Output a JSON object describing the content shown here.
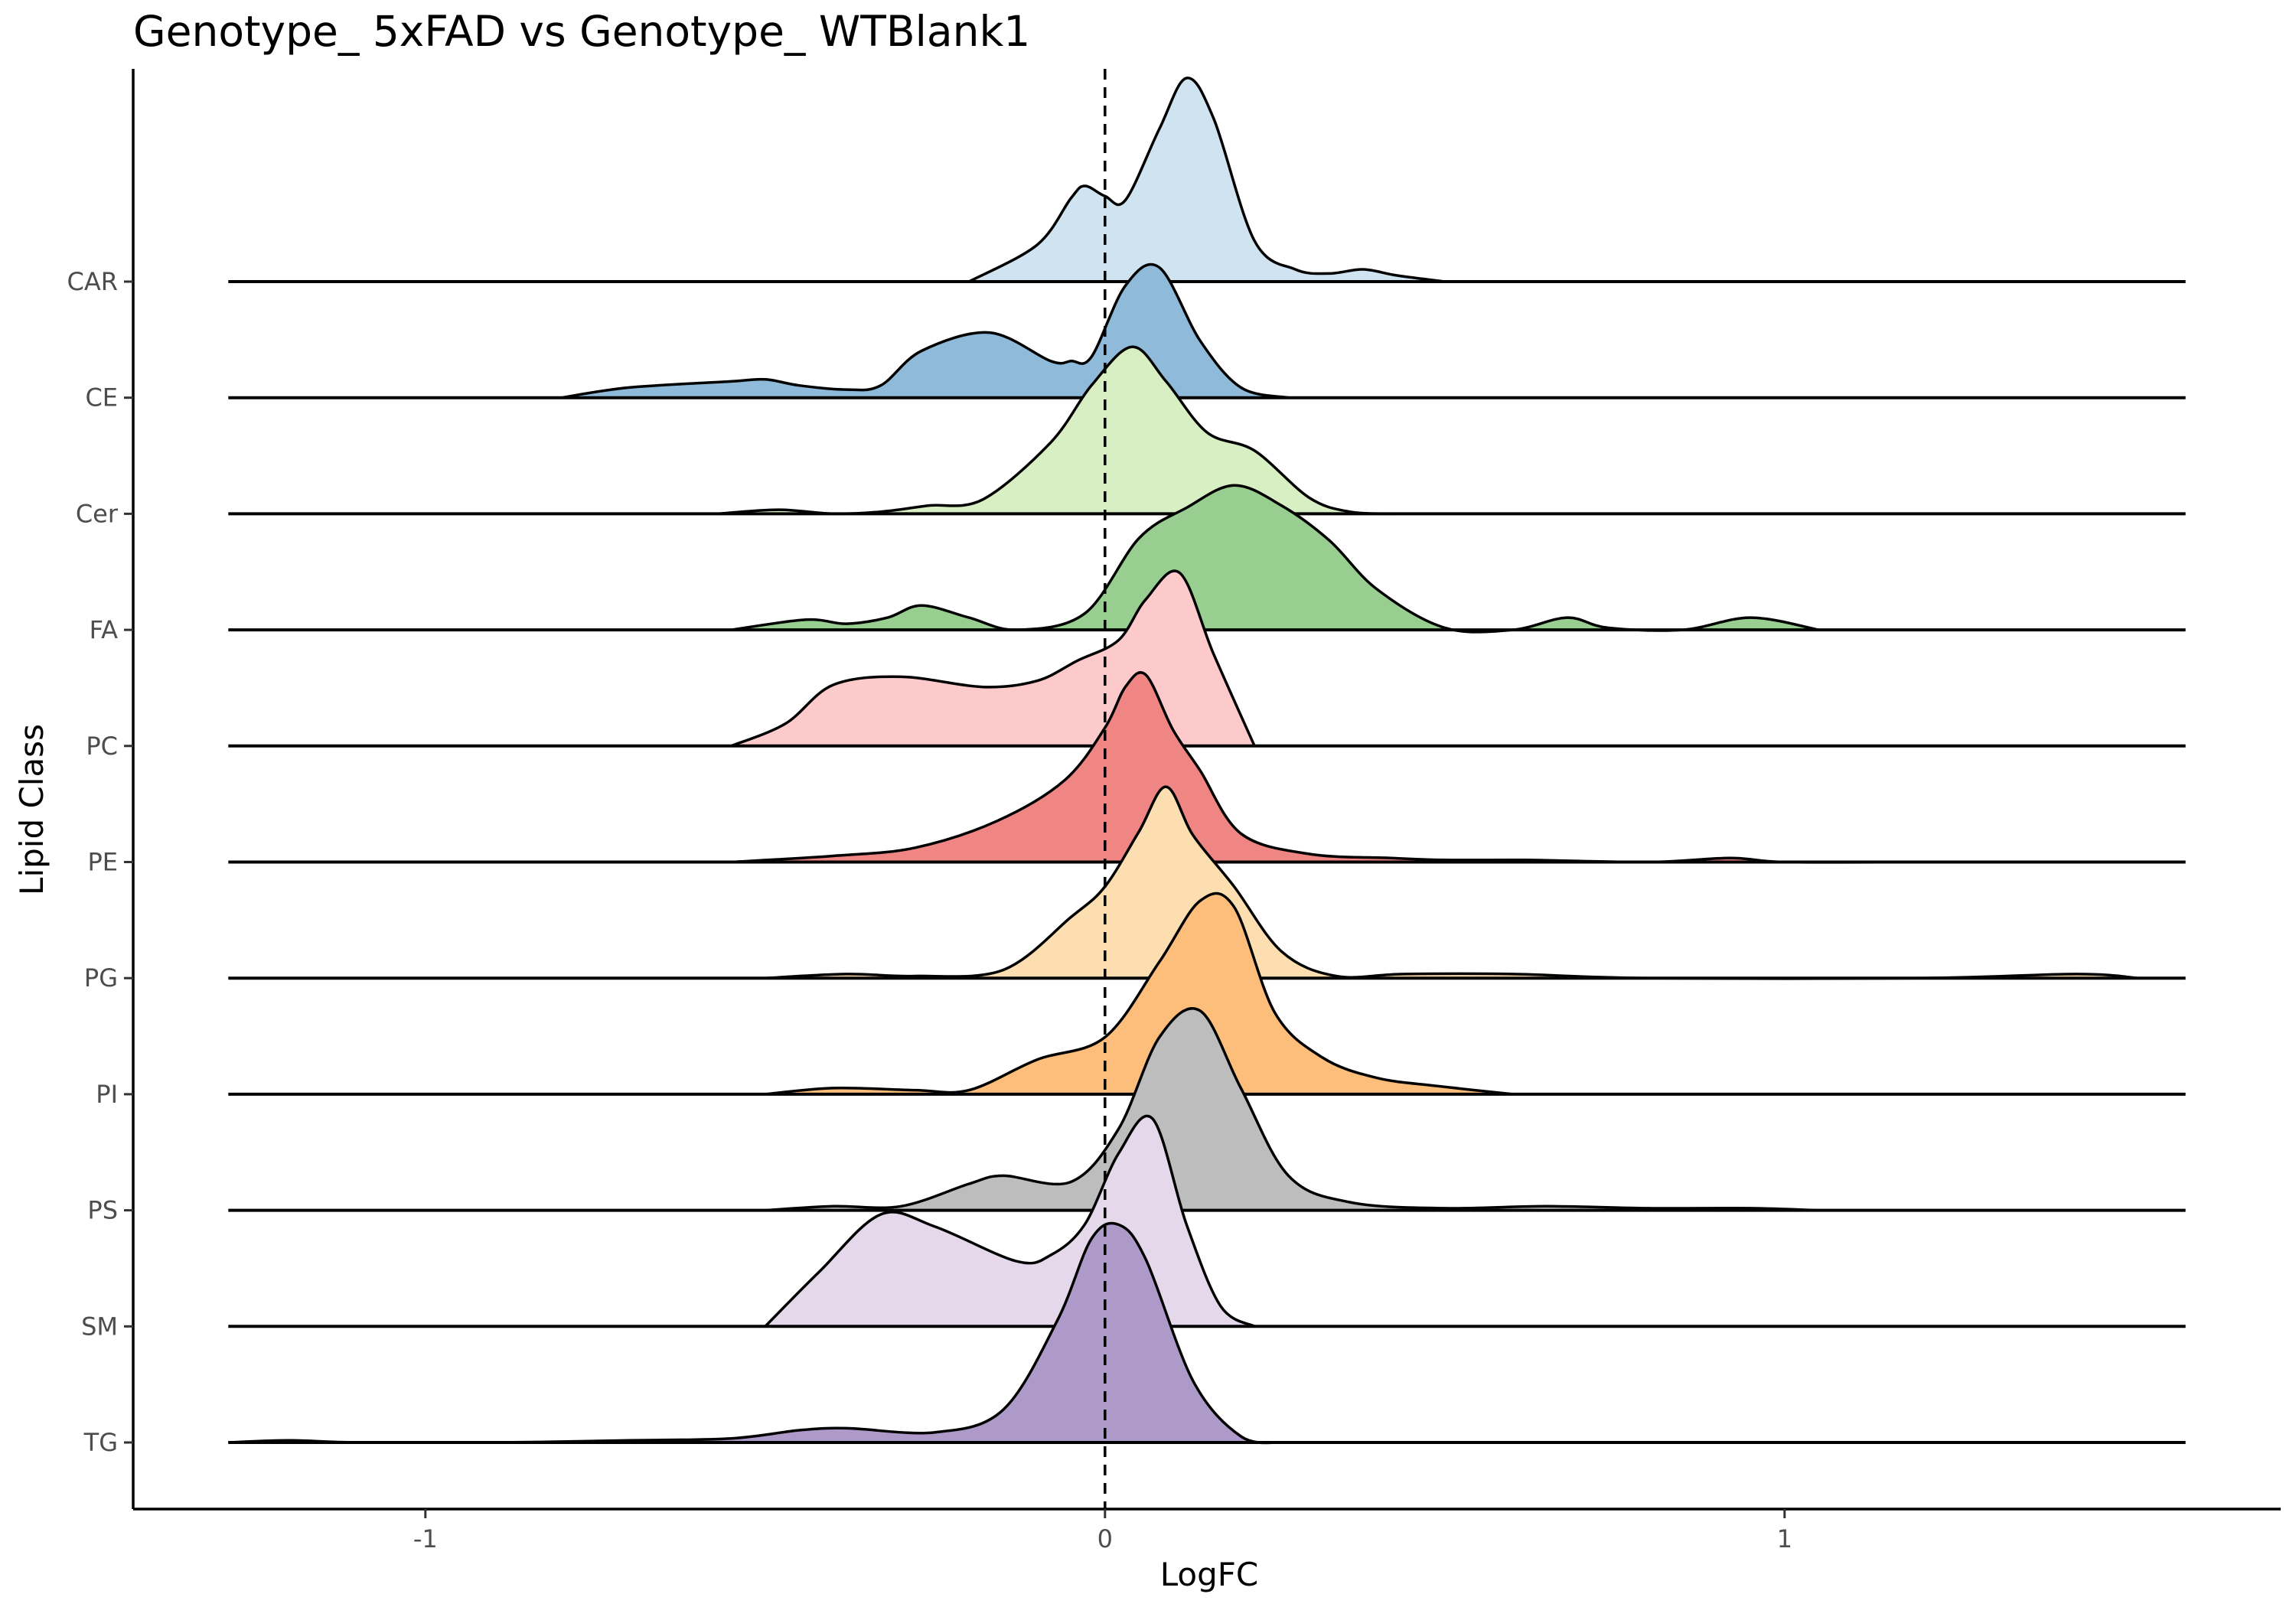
{
  "chart_data": {
    "type": "ridgeline",
    "title": "Genotype_ 5xFAD vs Genotype_ WTBlank1",
    "xlabel": "LogFC",
    "ylabel": "Lipid Class",
    "xlim": [
      -1.43,
      1.73
    ],
    "x_ticks": [
      {
        "value": -1,
        "label": "-1"
      },
      {
        "value": 0,
        "label": "0"
      },
      {
        "value": 1,
        "label": "1"
      }
    ],
    "x_range_drawn": [
      -1.29,
      1.59
    ],
    "reference_line": {
      "x": 0,
      "style": "dashed"
    },
    "grid": false,
    "legend": "none",
    "series": [
      {
        "label": "CAR",
        "color": "#cfe3f0",
        "x": [
          -0.2,
          -0.1,
          -0.05,
          -0.03,
          0.0,
          0.03,
          0.08,
          0.12,
          0.16,
          0.22,
          0.28,
          0.33,
          0.38,
          0.43,
          0.5
        ],
        "density": [
          0.0,
          0.18,
          0.41,
          0.47,
          0.42,
          0.4,
          0.75,
          1.0,
          0.8,
          0.2,
          0.06,
          0.04,
          0.06,
          0.03,
          0.0
        ]
      },
      {
        "label": "CE",
        "color": "#8fbad9",
        "x": [
          -0.8,
          -0.7,
          -0.55,
          -0.5,
          -0.45,
          -0.38,
          -0.33,
          -0.27,
          -0.17,
          -0.08,
          -0.05,
          -0.02,
          0.03,
          0.08,
          0.14,
          0.2,
          0.27
        ],
        "density": [
          0.0,
          0.05,
          0.08,
          0.09,
          0.06,
          0.04,
          0.06,
          0.23,
          0.32,
          0.18,
          0.18,
          0.2,
          0.55,
          0.64,
          0.28,
          0.05,
          0.0
        ]
      },
      {
        "label": "Cer",
        "color": "#d8efc4",
        "x": [
          -0.57,
          -0.48,
          -0.4,
          -0.33,
          -0.26,
          -0.18,
          -0.08,
          -0.02,
          0.04,
          0.09,
          0.15,
          0.22,
          0.3,
          0.36,
          0.43
        ],
        "density": [
          0.0,
          0.02,
          0.0,
          0.01,
          0.04,
          0.07,
          0.35,
          0.63,
          0.82,
          0.65,
          0.4,
          0.31,
          0.08,
          0.01,
          0.0
        ]
      },
      {
        "label": "FA",
        "color": "#98cf91",
        "x": [
          -0.55,
          -0.44,
          -0.38,
          -0.32,
          -0.27,
          -0.2,
          -0.13,
          -0.03,
          0.05,
          0.12,
          0.19,
          0.26,
          0.33,
          0.4,
          0.5,
          0.6,
          0.68,
          0.74,
          0.85,
          0.95,
          1.05
        ],
        "density": [
          0.0,
          0.05,
          0.03,
          0.06,
          0.12,
          0.06,
          0.0,
          0.08,
          0.45,
          0.6,
          0.71,
          0.61,
          0.44,
          0.2,
          0.01,
          0.0,
          0.06,
          0.01,
          0.0,
          0.06,
          0.0
        ]
      },
      {
        "label": "PC",
        "color": "#fccaca",
        "x": [
          -0.55,
          -0.47,
          -0.4,
          -0.3,
          -0.18,
          -0.1,
          -0.04,
          0.02,
          0.06,
          0.11,
          0.16,
          0.22
        ],
        "density": [
          0.0,
          0.11,
          0.3,
          0.34,
          0.29,
          0.32,
          0.42,
          0.52,
          0.72,
          0.85,
          0.45,
          0.0
        ]
      },
      {
        "label": "PE",
        "color": "#ef8684",
        "x": [
          -0.55,
          -0.4,
          -0.28,
          -0.16,
          -0.06,
          0.0,
          0.03,
          0.06,
          0.1,
          0.14,
          0.2,
          0.3,
          0.42,
          0.5,
          0.62,
          0.8,
          0.92,
          1.0,
          1.2
        ],
        "density": [
          0.0,
          0.03,
          0.07,
          0.2,
          0.4,
          0.66,
          0.86,
          0.92,
          0.65,
          0.45,
          0.14,
          0.04,
          0.02,
          0.01,
          0.01,
          0.0,
          0.02,
          0.0,
          0.0
        ]
      },
      {
        "label": "PG",
        "color": "#fcdeb0",
        "x": [
          -0.5,
          -0.38,
          -0.28,
          -0.15,
          -0.05,
          0.0,
          0.05,
          0.09,
          0.13,
          0.19,
          0.26,
          0.34,
          0.44,
          0.6,
          0.8,
          1.2,
          1.43,
          1.52
        ],
        "density": [
          0.0,
          0.02,
          0.01,
          0.04,
          0.3,
          0.45,
          0.72,
          0.94,
          0.7,
          0.45,
          0.13,
          0.01,
          0.02,
          0.02,
          0.0,
          0.0,
          0.02,
          0.0
        ]
      },
      {
        "label": "PI",
        "color": "#fdbe7b",
        "x": [
          -0.5,
          -0.4,
          -0.28,
          -0.2,
          -0.1,
          0.0,
          0.08,
          0.14,
          0.19,
          0.25,
          0.32,
          0.4,
          0.49,
          0.6
        ],
        "density": [
          0.0,
          0.03,
          0.02,
          0.02,
          0.17,
          0.28,
          0.65,
          0.95,
          0.92,
          0.4,
          0.18,
          0.08,
          0.04,
          0.0
        ]
      },
      {
        "label": "PS",
        "color": "#bdbdbd",
        "x": [
          -0.5,
          -0.4,
          -0.3,
          -0.2,
          -0.15,
          -0.05,
          0.02,
          0.08,
          0.14,
          0.2,
          0.27,
          0.36,
          0.5,
          0.65,
          0.8,
          0.95,
          1.05
        ],
        "density": [
          0.0,
          0.02,
          0.02,
          0.13,
          0.17,
          0.14,
          0.4,
          0.85,
          0.98,
          0.6,
          0.17,
          0.04,
          0.01,
          0.02,
          0.01,
          0.01,
          0.0
        ]
      },
      {
        "label": "SM",
        "color": "#e4d8ea",
        "x": [
          -0.5,
          -0.42,
          -0.33,
          -0.25,
          -0.13,
          -0.08,
          -0.03,
          0.02,
          0.07,
          0.12,
          0.17,
          0.22
        ],
        "density": [
          0.0,
          0.27,
          0.55,
          0.49,
          0.32,
          0.35,
          0.5,
          0.85,
          1.02,
          0.5,
          0.1,
          0.0
        ]
      },
      {
        "label": "TG",
        "color": "#ae9ac9",
        "x": [
          -1.29,
          -1.2,
          -1.1,
          -0.9,
          -0.7,
          -0.55,
          -0.45,
          -0.38,
          -0.25,
          -0.15,
          -0.07,
          -0.02,
          0.02,
          0.06,
          0.13,
          0.2,
          0.26
        ],
        "density": [
          0.0,
          0.01,
          0.0,
          0.0,
          0.01,
          0.02,
          0.06,
          0.07,
          0.05,
          0.16,
          0.6,
          1.0,
          1.07,
          0.9,
          0.3,
          0.03,
          0.0
        ]
      }
    ]
  }
}
